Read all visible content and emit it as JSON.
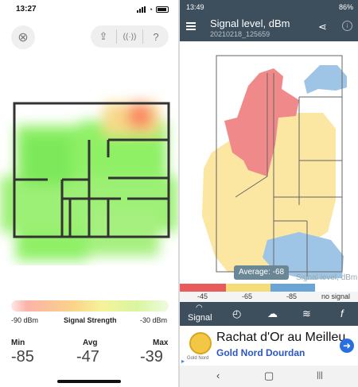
{
  "left": {
    "status": {
      "time": "13:27"
    },
    "toolbar": {
      "close_icon": "close-icon",
      "share_icon": "share-icon",
      "antenna_icon": "antenna-icon",
      "help_icon": "help-icon"
    },
    "scale": {
      "min_label": "-90 dBm",
      "title": "Signal Strength",
      "max_label": "-30 dBm"
    },
    "stats": [
      {
        "label": "Min",
        "value": "-85"
      },
      {
        "label": "Avg",
        "value": "-47"
      },
      {
        "label": "Max",
        "value": "-39"
      }
    ]
  },
  "right": {
    "status": {
      "time": "13:49",
      "battery": "86%"
    },
    "toolbar": {
      "title": "Signal level, dBm",
      "subtitle": "20210218_125659"
    },
    "average_label": "Average: -68",
    "map_label": "Signal level, dBm",
    "legend": [
      {
        "label": "-45",
        "color": "#e95a5a"
      },
      {
        "label": "-65",
        "color": "#f4dc78"
      },
      {
        "label": "-85",
        "color": "#6aa5d6"
      },
      {
        "label": "no signal",
        "color": "#ffffff"
      }
    ],
    "bottom": {
      "signal_label": "Signal"
    },
    "ad": {
      "logo_text": "Gold Nord",
      "line1": "Rachat d'Or au Meilleu",
      "line2": "Gold Nord Dourdan"
    },
    "nav": {
      "back": "‹",
      "home": "▢",
      "recents": "|||"
    },
    "colors": {
      "bar": "#3d4e5c",
      "red": "#f08a8a",
      "yellow": "#fbe7a2",
      "blue": "#9fc5e6"
    }
  }
}
